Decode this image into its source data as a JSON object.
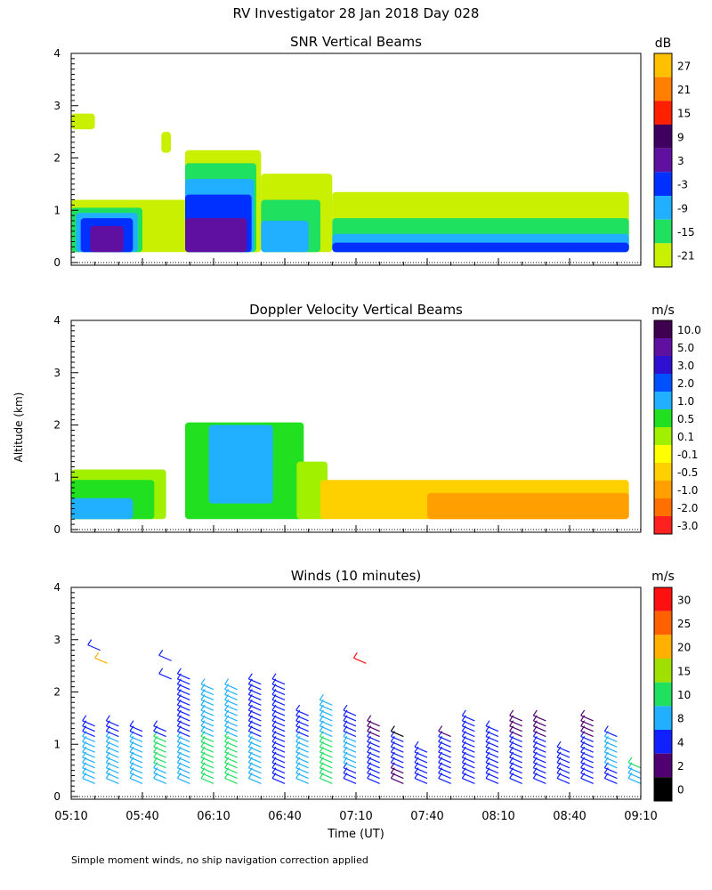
{
  "figure": {
    "title": "RV Investigator  28 Jan 2018 Day 028",
    "ylabel": "Altitude (km)",
    "xlabel": "Time (UT)",
    "footnote": "Simple moment winds, no ship navigation correction applied"
  },
  "chart_data": [
    {
      "type": "heatmap",
      "title": "SNR Vertical Beams",
      "colorbar_unit": "dB",
      "colorbar_ticks": [
        "27",
        "21",
        "15",
        "9",
        "3",
        "-3",
        "-9",
        "-15",
        "-21"
      ],
      "colorbar_colors": [
        "#ffc000",
        "#ff8000",
        "#ff2000",
        "#400060",
        "#6010a0",
        "#0030ff",
        "#20b0ff",
        "#20e060",
        "#c8f000"
      ],
      "y_ticks": [
        "0",
        "1",
        "2",
        "3",
        "4"
      ],
      "ylim": [
        0,
        4
      ],
      "x_ticks": [
        "05:10",
        "05:40",
        "06:10",
        "06:40",
        "07:10",
        "07:40",
        "08:10",
        "08:40",
        "09:10"
      ],
      "xlim_hours": [
        5.1667,
        9.1667
      ],
      "regions": [
        {
          "x0": "05:10",
          "x1": "06:30",
          "y0": 0.2,
          "y1": 1.2,
          "value": "-21"
        },
        {
          "x0": "05:10",
          "x1": "05:40",
          "y0": 0.2,
          "y1": 1.05,
          "value": "-15"
        },
        {
          "x0": "05:12",
          "x1": "05:38",
          "y0": 0.2,
          "y1": 0.95,
          "value": "-9"
        },
        {
          "x0": "05:14",
          "x1": "05:36",
          "y0": 0.2,
          "y1": 0.85,
          "value": "-3"
        },
        {
          "x0": "05:18",
          "x1": "05:32",
          "y0": 0.2,
          "y1": 0.7,
          "value": "3"
        },
        {
          "x0": "05:58",
          "x1": "06:30",
          "y0": 0.2,
          "y1": 2.15,
          "value": "-21"
        },
        {
          "x0": "05:58",
          "x1": "06:28",
          "y0": 0.2,
          "y1": 1.9,
          "value": "-15"
        },
        {
          "x0": "05:58",
          "x1": "06:27",
          "y0": 0.2,
          "y1": 1.6,
          "value": "-9"
        },
        {
          "x0": "05:58",
          "x1": "06:26",
          "y0": 0.2,
          "y1": 1.3,
          "value": "-3"
        },
        {
          "x0": "05:58",
          "x1": "06:24",
          "y0": 0.2,
          "y1": 0.85,
          "value": "3"
        },
        {
          "x0": "06:30",
          "x1": "07:00",
          "y0": 0.2,
          "y1": 1.7,
          "value": "-21"
        },
        {
          "x0": "06:30",
          "x1": "06:55",
          "y0": 0.2,
          "y1": 1.2,
          "value": "-15"
        },
        {
          "x0": "06:30",
          "x1": "06:50",
          "y0": 0.2,
          "y1": 0.8,
          "value": "-9"
        },
        {
          "x0": "07:00",
          "x1": "09:05",
          "y0": 0.2,
          "y1": 1.35,
          "value": "-21"
        },
        {
          "x0": "07:00",
          "x1": "09:05",
          "y0": 0.2,
          "y1": 0.85,
          "value": "-15"
        },
        {
          "x0": "07:00",
          "x1": "09:05",
          "y0": 0.2,
          "y1": 0.55,
          "value": "-9"
        },
        {
          "x0": "07:00",
          "x1": "09:05",
          "y0": 0.2,
          "y1": 0.38,
          "value": "-3"
        },
        {
          "x0": "05:10",
          "x1": "05:20",
          "y0": 2.55,
          "y1": 2.85,
          "value": "-21"
        },
        {
          "x0": "05:48",
          "x1": "05:52",
          "y0": 2.1,
          "y1": 2.5,
          "value": "-21"
        }
      ]
    },
    {
      "type": "heatmap",
      "title": "Doppler Velocity Vertical Beams",
      "colorbar_unit": "m/s",
      "colorbar_ticks": [
        "10.0",
        "5.0",
        "3.0",
        "2.0",
        "1.0",
        "0.5",
        "0.1",
        "-0.1",
        "-0.5",
        "-1.0",
        "-2.0",
        "-3.0"
      ],
      "colorbar_colors": [
        "#400050",
        "#6010a0",
        "#3010d0",
        "#0050ff",
        "#20b0ff",
        "#20e020",
        "#a0f000",
        "#ffff00",
        "#ffd000",
        "#ffa000",
        "#ff7000",
        "#ff2020"
      ],
      "y_ticks": [
        "0",
        "1",
        "2",
        "3",
        "4"
      ],
      "ylim": [
        0,
        4
      ],
      "x_ticks": [
        "05:10",
        "05:40",
        "06:10",
        "06:40",
        "07:10",
        "07:40",
        "08:10",
        "08:40",
        "09:10"
      ],
      "regions": [
        {
          "x0": "05:10",
          "x1": "05:50",
          "y0": 0.2,
          "y1": 1.15,
          "value": "0.1"
        },
        {
          "x0": "05:10",
          "x1": "05:45",
          "y0": 0.2,
          "y1": 0.95,
          "value": "0.5"
        },
        {
          "x0": "05:10",
          "x1": "05:36",
          "y0": 0.2,
          "y1": 0.6,
          "value": "1.0"
        },
        {
          "x0": "05:58",
          "x1": "06:48",
          "y0": 0.2,
          "y1": 2.05,
          "value": "0.5"
        },
        {
          "x0": "06:08",
          "x1": "06:35",
          "y0": 0.5,
          "y1": 2.0,
          "value": "1.0"
        },
        {
          "x0": "06:45",
          "x1": "06:58",
          "y0": 0.2,
          "y1": 1.3,
          "value": "0.1"
        },
        {
          "x0": "06:55",
          "x1": "09:05",
          "y0": 0.2,
          "y1": 0.95,
          "value": "-0.5"
        },
        {
          "x0": "07:40",
          "x1": "09:05",
          "y0": 0.2,
          "y1": 0.7,
          "value": "-1.0"
        }
      ]
    },
    {
      "type": "barbs",
      "title": "Winds (10 minutes)",
      "colorbar_unit": "m/s",
      "colorbar_ticks": [
        "30",
        "25",
        "20",
        "15",
        "10",
        "8",
        "4",
        "2",
        "0"
      ],
      "colorbar_colors": [
        "#ff1010",
        "#ff6000",
        "#ffb000",
        "#a0e000",
        "#20e060",
        "#20b0ff",
        "#1020ff",
        "#500070",
        "#000000"
      ],
      "y_ticks": [
        "0",
        "1",
        "2",
        "3",
        "4"
      ],
      "ylim": [
        0,
        4
      ],
      "x_ticks": [
        "05:10",
        "05:40",
        "06:10",
        "06:40",
        "07:10",
        "07:40",
        "08:10",
        "08:40",
        "09:10"
      ],
      "columns": [
        {
          "time": "05:17",
          "top": 1.55,
          "speed": 7
        },
        {
          "time": "05:27",
          "top": 1.55,
          "speed": 7
        },
        {
          "time": "05:37",
          "top": 1.45,
          "speed": 7
        },
        {
          "time": "05:47",
          "top": 1.4,
          "speed": 8
        },
        {
          "time": "05:57",
          "top": 2.4,
          "speed": 7
        },
        {
          "time": "06:07",
          "top": 2.25,
          "speed": 9
        },
        {
          "time": "06:17",
          "top": 2.25,
          "speed": 9
        },
        {
          "time": "06:27",
          "top": 2.3,
          "speed": 7
        },
        {
          "time": "06:37",
          "top": 2.3,
          "speed": 5
        },
        {
          "time": "06:47",
          "top": 1.75,
          "speed": 7
        },
        {
          "time": "06:57",
          "top": 1.95,
          "speed": 9
        },
        {
          "time": "07:07",
          "top": 1.7,
          "speed": 6
        },
        {
          "time": "07:17",
          "top": 1.55,
          "speed": 4
        },
        {
          "time": "07:27",
          "top": 1.3,
          "speed": 2
        },
        {
          "time": "07:37",
          "top": 1.0,
          "speed": 3
        },
        {
          "time": "07:47",
          "top": 1.3,
          "speed": 3
        },
        {
          "time": "07:57",
          "top": 1.6,
          "speed": 5
        },
        {
          "time": "08:07",
          "top": 1.4,
          "speed": 5
        },
        {
          "time": "08:17",
          "top": 1.6,
          "speed": 4
        },
        {
          "time": "08:27",
          "top": 1.6,
          "speed": 3
        },
        {
          "time": "08:37",
          "top": 1.0,
          "speed": 3
        },
        {
          "time": "08:47",
          "top": 1.6,
          "speed": 4
        },
        {
          "time": "08:57",
          "top": 1.3,
          "speed": 6
        },
        {
          "time": "09:07",
          "top": 0.7,
          "speed": 8
        }
      ],
      "upper_barbs": [
        {
          "time": "05:17",
          "alt": 2.9,
          "speed": 4
        },
        {
          "time": "05:20",
          "alt": 2.65,
          "speed": 20
        },
        {
          "time": "05:47",
          "alt": 2.7,
          "speed": 6
        },
        {
          "time": "05:47",
          "alt": 2.35,
          "speed": 6
        },
        {
          "time": "07:09",
          "alt": 2.65,
          "speed": 30
        }
      ]
    }
  ]
}
